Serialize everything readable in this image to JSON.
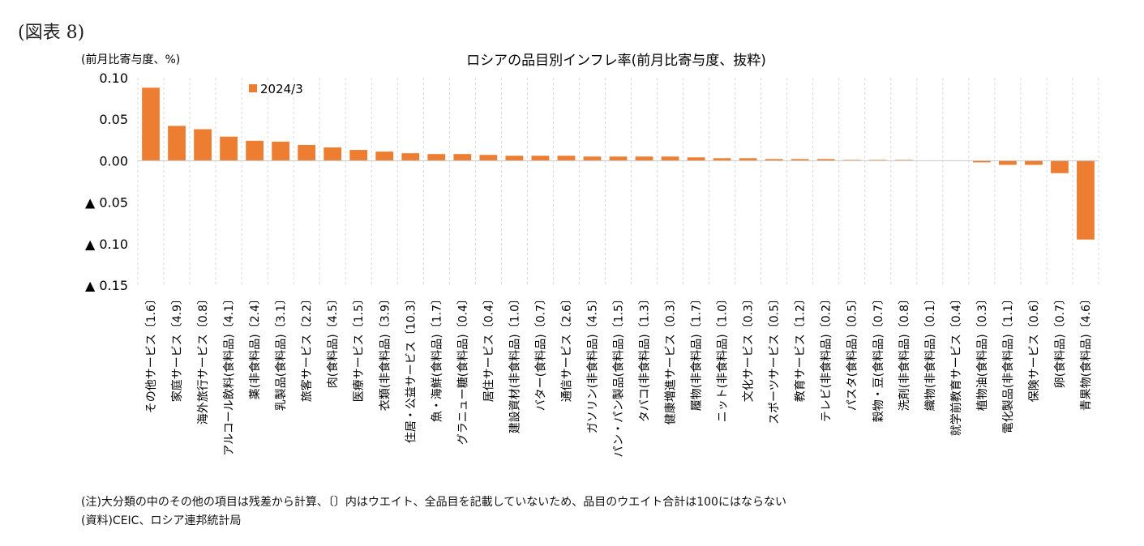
{
  "figure_label": "(図表 8)",
  "notes": {
    "note1": "(注)大分類の中のその他の項目は残差から計算、〔〕内はウエイト、全品目を記載していないため、品目のウエイト合計は100にはならない",
    "note2": "(資料)CEIC、ロシア連邦統計局"
  },
  "chart_data": {
    "type": "bar",
    "title": "ロシアの品目別インフレ率(前月比寄与度、抜粋)",
    "ylabel": "(前月比寄与度、%)",
    "xlabel": "",
    "ylim": [
      -0.15,
      0.1
    ],
    "yticks": [
      0.1,
      0.05,
      0.0,
      -0.05,
      -0.1,
      -0.15
    ],
    "ytick_labels": [
      "0.10",
      "0.05",
      "0.00",
      "▲ 0.05",
      "▲ 0.10",
      "▲ 0.15"
    ],
    "grid": "vertical",
    "legend_position": "top-left",
    "color": "#ED7D31",
    "series": [
      {
        "name": "2024/3",
        "values": [
          0.088,
          0.042,
          0.038,
          0.029,
          0.024,
          0.023,
          0.019,
          0.016,
          0.013,
          0.011,
          0.009,
          0.008,
          0.008,
          0.007,
          0.006,
          0.006,
          0.006,
          0.005,
          0.005,
          0.005,
          0.005,
          0.004,
          0.003,
          0.003,
          0.002,
          0.002,
          0.002,
          0.001,
          0.001,
          0.001,
          0.0,
          0.0,
          -0.002,
          -0.005,
          -0.005,
          -0.015,
          -0.095
        ]
      }
    ],
    "categories": [
      "その他サービス〔1.6〕",
      "家庭サービス〔4.9〕",
      "海外旅行サービス〔0.8〕",
      "アルコール飲料(食料品)〔4.1〕",
      "薬(非食料品)〔2.4〕",
      "乳製品(食料品)〔3.1〕",
      "旅客サービス〔2.2〕",
      "肉(食料品)〔4.5〕",
      "医療サービス〔1.5〕",
      "衣類(非食料品)〔3.9〕",
      "住居・公益サービス〔10.3〕",
      "魚・海鮮(食料品)〔1.7〕",
      "グラニュー糖(食料品)〔0.4〕",
      "居住サービス〔0.4〕",
      "建設資材(非食料品)〔1.0〕",
      "バター(食料品)〔0.7〕",
      "通信サービス〔2.6〕",
      "ガソリン(非食料品)〔4.5〕",
      "パン・パン製品(食料品)〔1.5〕",
      "タバコ(非食料品)〔1.3〕",
      "健康増進サービス〔0.3〕",
      "履物(非食料品)〔1.7〕",
      "ニット(非食料品)〔1.0〕",
      "文化サービス〔0.3〕",
      "スポーツサービス〔0.5〕",
      "教育サービス〔1.2〕",
      "テレビ(非食料品)〔0.2〕",
      "パスタ(食料品)〔0.5〕",
      "穀物・豆(食料品)〔0.7〕",
      "洗剤(非食料品)〔0.8〕",
      "織物(非食料品)〔0.1〕",
      "就学前教育サービス〔0.4〕",
      "植物油(食料品)〔0.3〕",
      "電化製品(非食料品)〔1.1〕",
      "保険サービス〔0.6〕",
      "卵(食料品)〔0.7〕",
      "青果物(食料品)〔4.6〕"
    ]
  }
}
